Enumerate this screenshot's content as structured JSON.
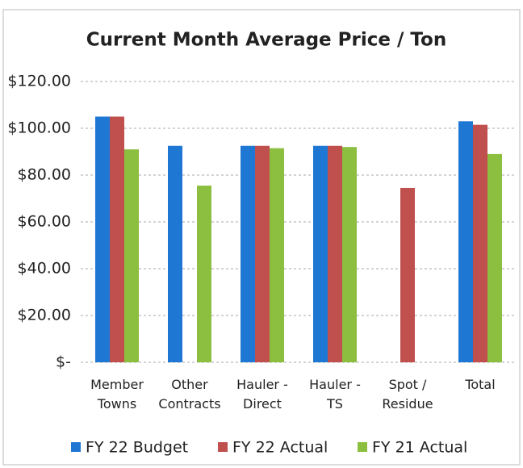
{
  "chart_data": {
    "type": "bar",
    "title": "Current Month Average Price / Ton",
    "categories": [
      "Member Towns",
      "Other Contracts",
      "Hauler - Direct",
      "Hauler - TS",
      "Spot / Residue",
      "Total"
    ],
    "series": [
      {
        "name": "FY 22 Budget",
        "color": "#1f77d4",
        "values": [
          105,
          92.5,
          92.5,
          92.5,
          null,
          103
        ]
      },
      {
        "name": "FY 22 Actual",
        "color": "#c0504d",
        "values": [
          105,
          null,
          92.5,
          92.5,
          74.5,
          101.5
        ]
      },
      {
        "name": "FY 21 Actual",
        "color": "#8cbf3f",
        "values": [
          91,
          75.5,
          91.5,
          92,
          null,
          89
        ]
      }
    ],
    "ylim": [
      0,
      120
    ],
    "yticks": [
      {
        "value": 0,
        "label": "$-"
      },
      {
        "value": 20,
        "label": "$20.00"
      },
      {
        "value": 40,
        "label": "$40.00"
      },
      {
        "value": 60,
        "label": "$60.00"
      },
      {
        "value": 80,
        "label": "$80.00"
      },
      {
        "value": 100,
        "label": "$100.00"
      },
      {
        "value": 120,
        "label": "$120.00"
      }
    ],
    "grid": true,
    "legend": "bottom"
  }
}
